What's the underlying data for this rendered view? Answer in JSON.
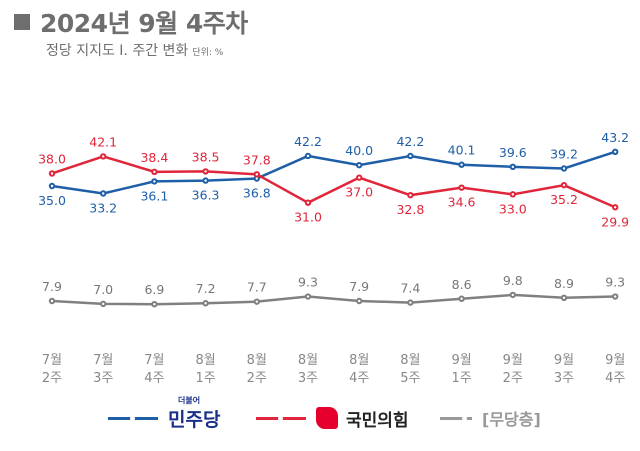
{
  "header": {
    "title": "2024년 9월 4주차",
    "subtitle": "정당 지지도 Ⅰ. 주간 변화",
    "unit": "단위: %"
  },
  "chart_data": {
    "type": "line",
    "title": "2024년 9월 4주차",
    "subtitle": "정당 지지도 Ⅰ. 주간 변화",
    "unit": "%",
    "categories": [
      "7월 2주",
      "7월 3주",
      "7월 4주",
      "8월 1주",
      "8월 2주",
      "8월 3주",
      "8월 4주",
      "8월 5주",
      "9월 1주",
      "9월 2주",
      "9월 3주",
      "9월 4주"
    ],
    "series": [
      {
        "name": "민주당",
        "color": "#1f5fa8",
        "values": [
          35.0,
          33.2,
          36.1,
          36.3,
          36.8,
          42.2,
          40.0,
          42.2,
          40.1,
          39.6,
          39.2,
          43.2
        ]
      },
      {
        "name": "국민의힘",
        "color": "#e0263a",
        "values": [
          38.0,
          42.1,
          38.4,
          38.5,
          37.8,
          31.0,
          37.0,
          32.8,
          34.6,
          33.0,
          35.2,
          29.9
        ]
      },
      {
        "name": "[무당층]",
        "color": "#808080",
        "values": [
          7.9,
          7.0,
          6.9,
          7.2,
          7.7,
          9.3,
          7.9,
          7.4,
          8.6,
          9.8,
          8.9,
          9.3
        ]
      }
    ],
    "grid": false,
    "legend": "bottom",
    "axis_break": true
  },
  "legend": {
    "dem_label": "민주당",
    "dem_logo_text": "더불어",
    "ppp_label": "국민의힘",
    "none_label": "[무당층]"
  }
}
